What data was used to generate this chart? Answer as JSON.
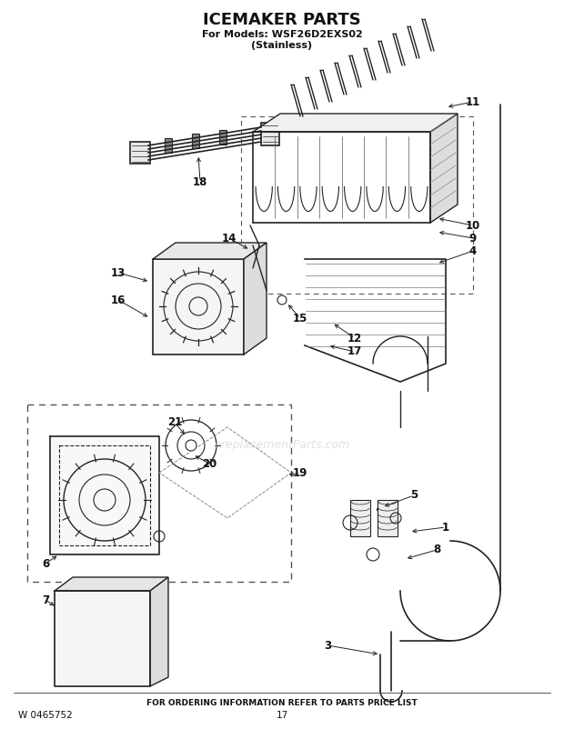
{
  "title": "ICEMAKER PARTS",
  "subtitle1": "For Models: WSF26D2EXS02",
  "subtitle2": "(Stainless)",
  "footer_left": "W 0465752",
  "footer_center": "17",
  "footer_msg": "FOR ORDERING INFORMATION REFER TO PARTS PRICE LIST",
  "bg_color": "#ffffff",
  "text_color": "#111111",
  "watermark": "ereplacementParts.com",
  "lw": 0.9,
  "gray": "#222222"
}
